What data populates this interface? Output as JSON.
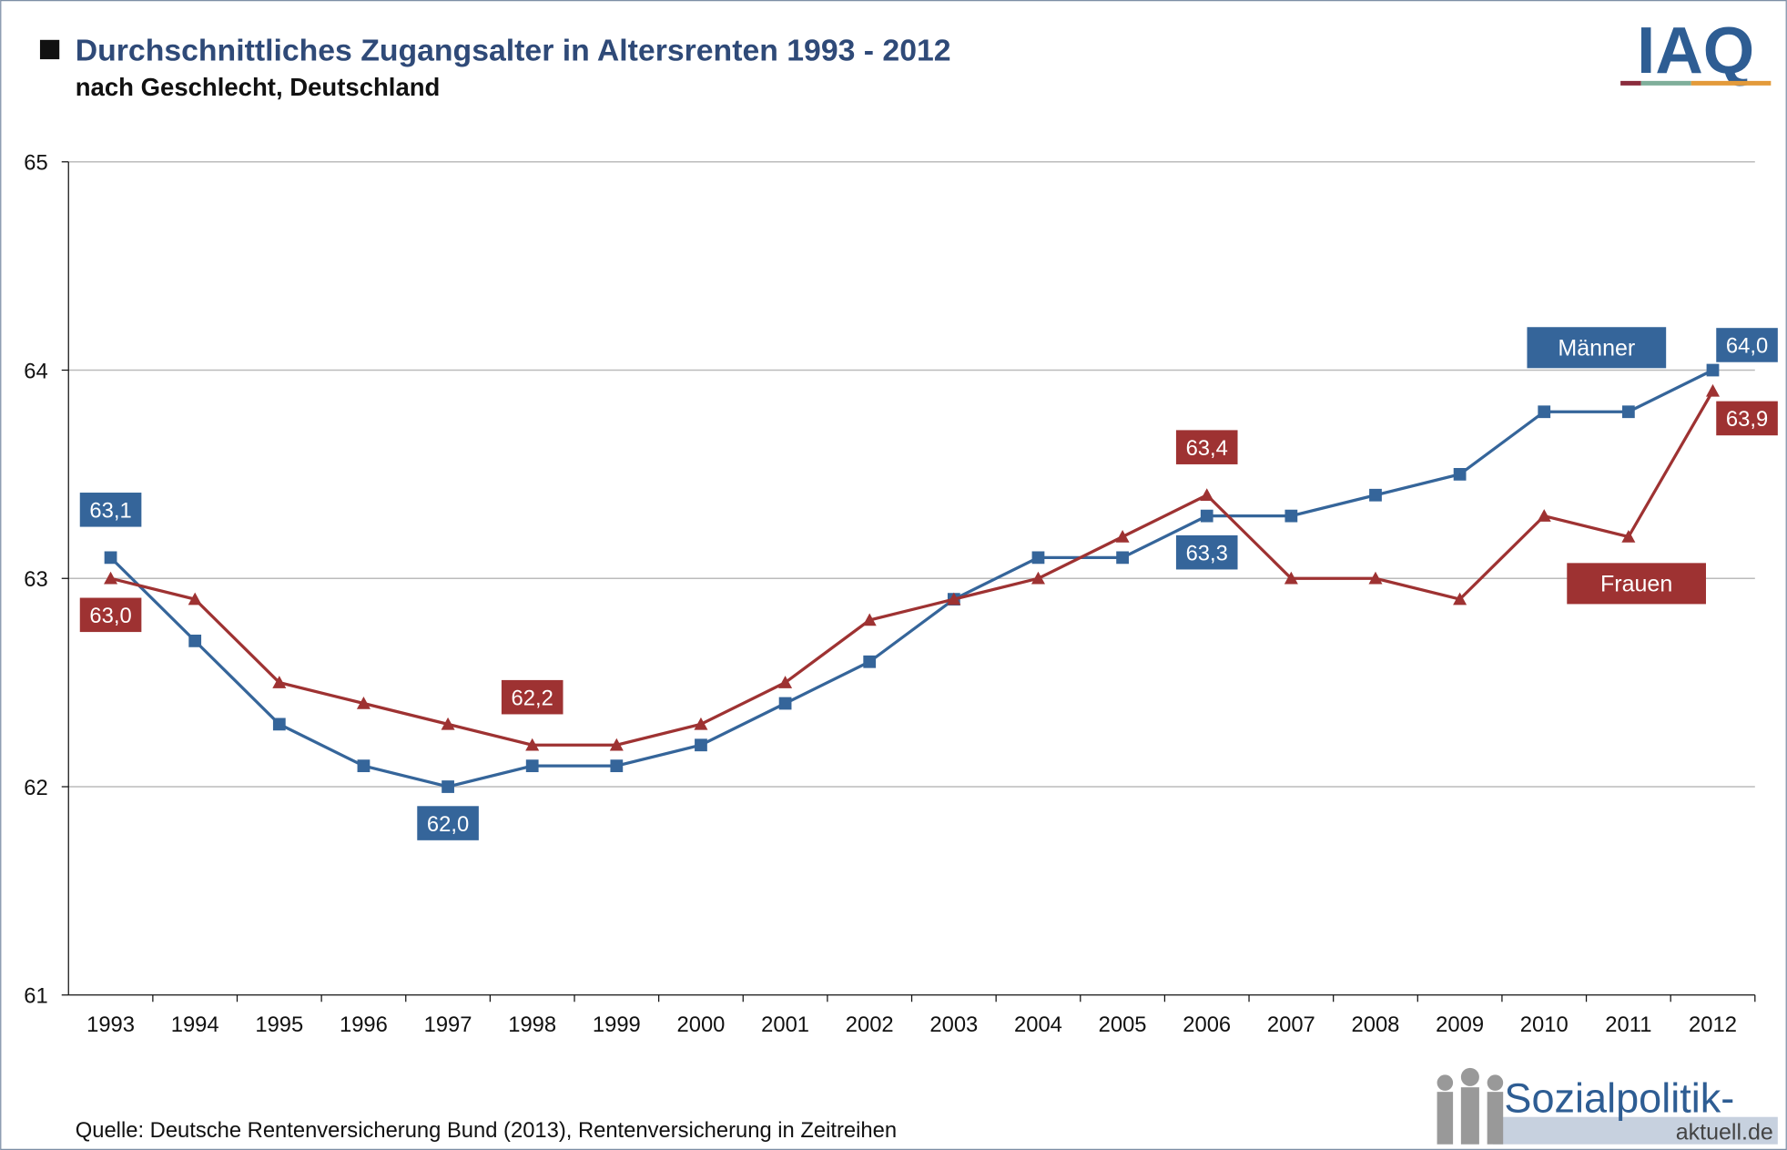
{
  "chart_data": {
    "type": "line",
    "title": "Durchschnittliches Zugangsalter in Altersrenten 1993 - 2012",
    "subtitle": "nach Geschlecht, Deutschland",
    "source": "Quelle: Deutsche Rentenversicherung Bund (2013), Rentenversicherung in Zeitreihen",
    "logo": "IAQ",
    "brand": [
      "Sozialpolitik-",
      "aktuell.de"
    ],
    "categories": [
      "1993",
      "1994",
      "1995",
      "1996",
      "1997",
      "1998",
      "1999",
      "2000",
      "2001",
      "2002",
      "2003",
      "2004",
      "2005",
      "2006",
      "2007",
      "2008",
      "2009",
      "2010",
      "2011",
      "2012"
    ],
    "series": [
      {
        "name": "Männer",
        "color": "#35659a",
        "marker": "square",
        "values": [
          63.1,
          62.7,
          62.3,
          62.1,
          62.0,
          62.1,
          62.1,
          62.2,
          62.4,
          62.6,
          62.9,
          63.1,
          63.1,
          63.3,
          63.3,
          63.4,
          63.5,
          63.8,
          63.8,
          64.0
        ],
        "value_labels": [
          "63,1",
          null,
          null,
          null,
          "62,0",
          null,
          null,
          null,
          null,
          null,
          null,
          null,
          null,
          "63,3",
          null,
          null,
          null,
          null,
          null,
          "64,0"
        ]
      },
      {
        "name": "Frauen",
        "color": "#9e3232",
        "marker": "triangle",
        "values": [
          63.0,
          62.9,
          62.5,
          62.4,
          62.3,
          62.2,
          62.2,
          62.3,
          62.5,
          62.8,
          62.9,
          63.0,
          63.2,
          63.4,
          63.0,
          63.0,
          62.9,
          63.3,
          63.2,
          63.9
        ],
        "value_labels": [
          "63,0",
          null,
          null,
          null,
          null,
          "62,2",
          null,
          null,
          null,
          null,
          null,
          null,
          null,
          "63,4",
          null,
          null,
          null,
          null,
          null,
          "63,9"
        ]
      }
    ],
    "ylim": [
      61,
      65
    ],
    "yticks": [
      61,
      62,
      63,
      64,
      65
    ],
    "grid": true
  }
}
